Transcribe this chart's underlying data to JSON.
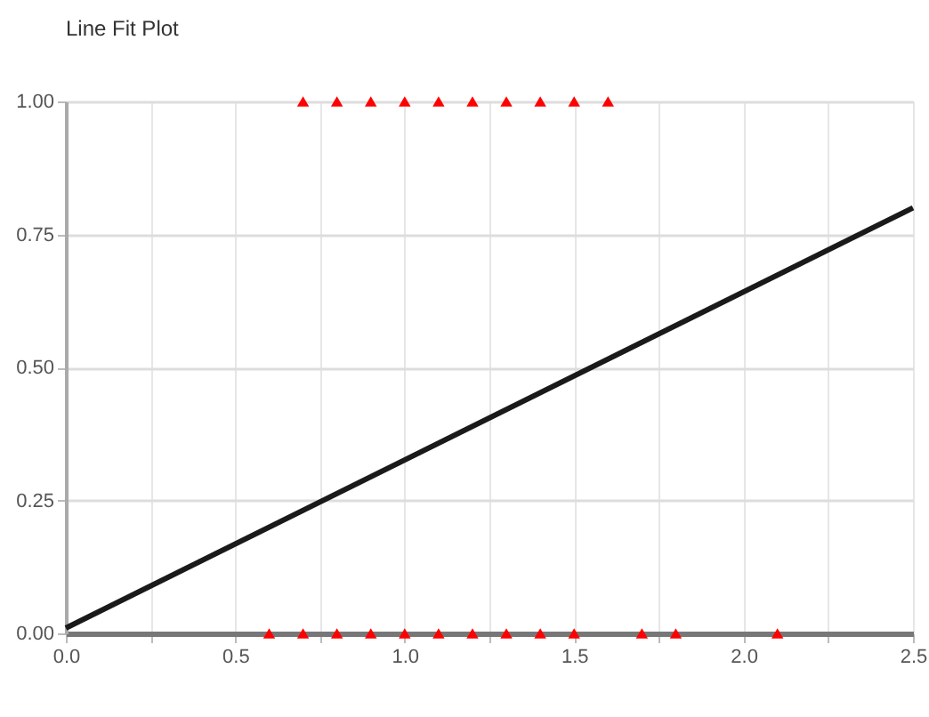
{
  "chart_data": {
    "type": "scatter",
    "title": "Line Fit Plot",
    "xlim": [
      0,
      2.5
    ],
    "ylim": [
      0,
      1
    ],
    "xticks": [
      {
        "value": 0,
        "label": "0.0"
      },
      {
        "value": 0.25,
        "label": null
      },
      {
        "value": 0.5,
        "label": "0.5"
      },
      {
        "value": 0.75,
        "label": null
      },
      {
        "value": 1,
        "label": "1.0"
      },
      {
        "value": 1.25,
        "label": null
      },
      {
        "value": 1.5,
        "label": "1.5"
      },
      {
        "value": 1.75,
        "label": null
      },
      {
        "value": 2,
        "label": "2.0"
      },
      {
        "value": 2.25,
        "label": null
      },
      {
        "value": 2.5,
        "label": "2.5"
      }
    ],
    "yticks": [
      {
        "value": 0,
        "label": "0.00"
      },
      {
        "value": 0.25,
        "label": "0.25"
      },
      {
        "value": 0.5,
        "label": "0.50"
      },
      {
        "value": 0.75,
        "label": "0.75"
      },
      {
        "value": 1,
        "label": "1.00"
      }
    ],
    "grid": true,
    "series": [
      {
        "marker": "triangle",
        "color": "#ff0000",
        "x": [
          0.7,
          0.8,
          0.9,
          1.0,
          1.1,
          1.2,
          1.3,
          1.4,
          1.5,
          1.6,
          0.6,
          0.7,
          0.8,
          0.9,
          1.0,
          1.1,
          1.2,
          1.3,
          1.4,
          1.5,
          1.7,
          1.8,
          2.1
        ],
        "values": [
          1,
          1,
          1,
          1,
          1,
          1,
          1,
          1,
          1,
          1,
          0,
          0,
          0,
          0,
          0,
          0,
          0,
          0,
          0,
          0,
          0,
          0,
          0
        ]
      },
      {
        "type": "line",
        "color": "#1a1a1a",
        "line_style": "solid",
        "x": [
          0,
          2.5
        ],
        "values": [
          0.01,
          0.8
        ]
      }
    ]
  }
}
